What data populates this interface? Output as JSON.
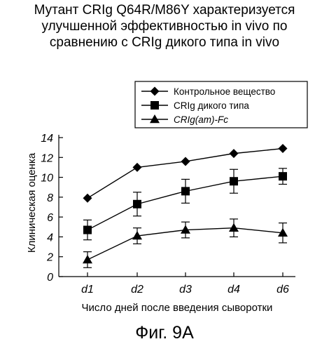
{
  "title_lines": [
    "Мутант CRIg Q64R/M86Y характеризуется",
    "улучшенной эффективностью in vivo по",
    "сравнению с CRIg дикого типа in vivo"
  ],
  "figure_label": "Фиг. 9A",
  "chart_data": {
    "type": "line",
    "title": "Мутант CRIg Q64R/M86Y характеризуется улучшенной эффективностью in vivo по сравнению с CRIg дикого типа in vivo",
    "xlabel": "Число дней после введения сыворотки",
    "ylabel": "Клиническая оценка",
    "categories": [
      "d1",
      "d2",
      "d3",
      "d4",
      "d6"
    ],
    "ylim": [
      0,
      14
    ],
    "yticks": [
      0,
      2,
      4,
      6,
      8,
      10,
      12,
      14
    ],
    "grid": false,
    "legend_position": "top-right",
    "series": [
      {
        "name": "Контрольное вещество",
        "marker": "diamond",
        "values": [
          7.9,
          11.0,
          11.6,
          12.4,
          12.9
        ],
        "errors": [
          0,
          0,
          0,
          0,
          0
        ]
      },
      {
        "name": "CRIg дикого типа",
        "marker": "square",
        "values": [
          4.7,
          7.3,
          8.6,
          9.6,
          10.1
        ],
        "errors": [
          1.0,
          1.2,
          1.2,
          1.2,
          0.8
        ]
      },
      {
        "name": "CRIg(am)-Fc",
        "marker": "triangle",
        "italic": true,
        "values": [
          1.7,
          4.1,
          4.7,
          4.9,
          4.4
        ],
        "errors": [
          0.8,
          0.8,
          0.8,
          0.9,
          1.0
        ]
      }
    ]
  }
}
